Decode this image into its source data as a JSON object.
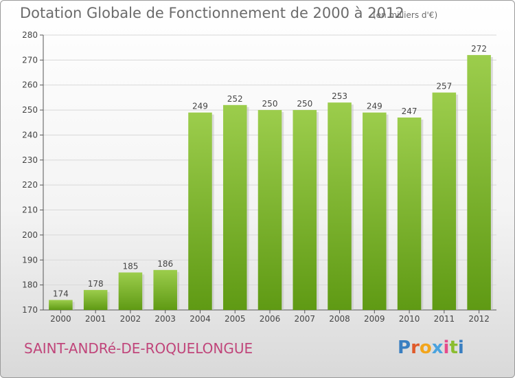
{
  "header": {
    "title": "Dotation Globale de Fonctionnement de 2000 à 2012",
    "unit": "(en milliers d'€)"
  },
  "footer": {
    "commune": "SAINT-ANDRé-DE-ROQUELONGUE",
    "logo_letters": [
      "P",
      "r",
      "o",
      "x",
      "i",
      "t",
      "i"
    ],
    "logo_colors": [
      "#3a7fc1",
      "#e05a2a",
      "#f2a51c",
      "#4aa3df",
      "#e64b8b",
      "#8bbd2f",
      "#3a7fc1"
    ]
  },
  "chart_data": {
    "type": "bar",
    "categories": [
      "2000",
      "2001",
      "2002",
      "2003",
      "2004",
      "2005",
      "2006",
      "2007",
      "2008",
      "2009",
      "2010",
      "2011",
      "2012"
    ],
    "values": [
      174,
      178,
      185,
      186,
      249,
      252,
      250,
      250,
      253,
      249,
      247,
      257,
      272
    ],
    "ylim": [
      170,
      280
    ],
    "yticks": [
      170,
      180,
      190,
      200,
      210,
      220,
      230,
      240,
      250,
      260,
      270,
      280
    ],
    "grid": true,
    "bar_color_top": "#9ccd4c",
    "bar_color_bottom": "#5f9a14"
  }
}
